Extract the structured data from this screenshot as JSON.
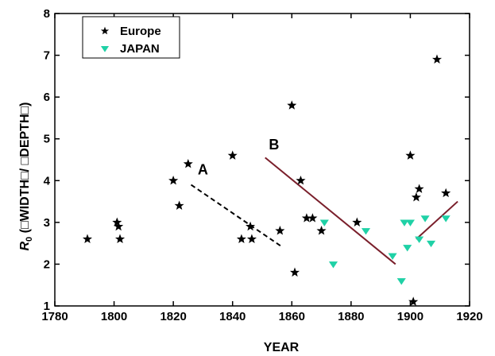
{
  "chart_data": {
    "type": "scatter",
    "xlabel": "YEAR",
    "ylabel": "R0 (WIDTH / DEPTH)",
    "ylabel_main": "R",
    "ylabel_sub": "0",
    "ylabel_rest": " (□WIDTH□/ □DEPTH□)",
    "xlim": [
      1780,
      1920
    ],
    "ylim": [
      1,
      8
    ],
    "xticks": [
      1780,
      1800,
      1820,
      1840,
      1860,
      1880,
      1900,
      1920
    ],
    "yticks": [
      1,
      2,
      3,
      4,
      5,
      6,
      7,
      8
    ],
    "grid": false,
    "legend_position": "top-left",
    "series": [
      {
        "name": "Europe",
        "marker": "star",
        "color": "#000000",
        "points": [
          [
            1791,
            2.6
          ],
          [
            1801,
            3.0
          ],
          [
            1801.5,
            2.9
          ],
          [
            1802,
            2.6
          ],
          [
            1820,
            4.0
          ],
          [
            1822,
            3.4
          ],
          [
            1825,
            4.4
          ],
          [
            1840,
            4.6
          ],
          [
            1843,
            2.6
          ],
          [
            1846,
            2.9
          ],
          [
            1846.5,
            2.6
          ],
          [
            1856,
            2.8
          ],
          [
            1860,
            5.8
          ],
          [
            1861,
            1.8
          ],
          [
            1863,
            4.0
          ],
          [
            1865,
            3.1
          ],
          [
            1867,
            3.1
          ],
          [
            1870,
            2.8
          ],
          [
            1882,
            3.0
          ],
          [
            1900,
            4.6
          ],
          [
            1902,
            3.6
          ],
          [
            1903,
            3.8
          ],
          [
            1901,
            1.1
          ],
          [
            1909,
            6.9
          ],
          [
            1912,
            3.7
          ]
        ]
      },
      {
        "name": "JAPAN",
        "marker": "triangle",
        "color": "#1fd1a6",
        "points": [
          [
            1871,
            3.0
          ],
          [
            1874,
            2.0
          ],
          [
            1885,
            2.8
          ],
          [
            1894,
            2.2
          ],
          [
            1897,
            1.6
          ],
          [
            1898,
            3.0
          ],
          [
            1899,
            2.4
          ],
          [
            1900,
            3.0
          ],
          [
            1903,
            2.6
          ],
          [
            1905,
            3.1
          ],
          [
            1907,
            2.5
          ],
          [
            1912,
            3.1
          ]
        ]
      }
    ],
    "trend_lines": [
      {
        "label": "A",
        "style": "dashed",
        "color": "#000000",
        "from": [
          1826,
          3.9
        ],
        "to": [
          1857,
          2.4
        ]
      },
      {
        "label": "B",
        "style": "solid",
        "color": "#7a1f2b",
        "from": [
          1851,
          4.55
        ],
        "to": [
          1895,
          2.0
        ]
      },
      {
        "label": "",
        "style": "solid",
        "color": "#7a1f2b",
        "from": [
          1902,
          2.6
        ],
        "to": [
          1916,
          3.5
        ]
      }
    ],
    "annotations": [
      {
        "text": "A",
        "x": 1830,
        "y": 4.15
      },
      {
        "text": "B",
        "x": 1854,
        "y": 4.75
      }
    ]
  }
}
